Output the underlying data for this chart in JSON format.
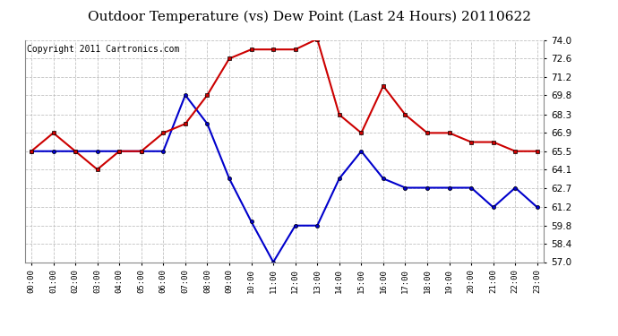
{
  "title": "Outdoor Temperature (vs) Dew Point (Last 24 Hours) 20110622",
  "copyright": "Copyright 2011 Cartronics.com",
  "hours": [
    "00:00",
    "01:00",
    "02:00",
    "03:00",
    "04:00",
    "05:00",
    "06:00",
    "07:00",
    "08:00",
    "09:00",
    "10:00",
    "11:00",
    "12:00",
    "13:00",
    "14:00",
    "15:00",
    "16:00",
    "17:00",
    "18:00",
    "19:00",
    "20:00",
    "21:00",
    "22:00",
    "23:00"
  ],
  "temp_red": [
    65.5,
    66.9,
    65.5,
    64.1,
    65.5,
    65.5,
    66.9,
    67.6,
    69.8,
    72.6,
    73.3,
    73.3,
    73.3,
    74.1,
    68.3,
    66.9,
    70.5,
    68.3,
    66.9,
    66.9,
    66.2,
    66.2,
    65.5,
    65.5
  ],
  "dew_blue": [
    65.5,
    65.5,
    65.5,
    65.5,
    65.5,
    65.5,
    65.5,
    69.8,
    67.6,
    63.4,
    60.1,
    57.0,
    59.8,
    59.8,
    63.4,
    65.5,
    63.4,
    62.7,
    62.7,
    62.7,
    62.7,
    61.2,
    62.7,
    61.2
  ],
  "ylim_min": 57.0,
  "ylim_max": 74.0,
  "yticks": [
    57.0,
    58.4,
    59.8,
    61.2,
    62.7,
    64.1,
    65.5,
    66.9,
    68.3,
    69.8,
    71.2,
    72.6,
    74.0
  ],
  "red_color": "#cc0000",
  "blue_color": "#0000cc",
  "bg_color": "#ffffff",
  "plot_bg": "#ffffff",
  "grid_color": "#bbbbbb",
  "title_fontsize": 11,
  "copyright_fontsize": 7,
  "marker_size": 3,
  "line_width": 1.5
}
